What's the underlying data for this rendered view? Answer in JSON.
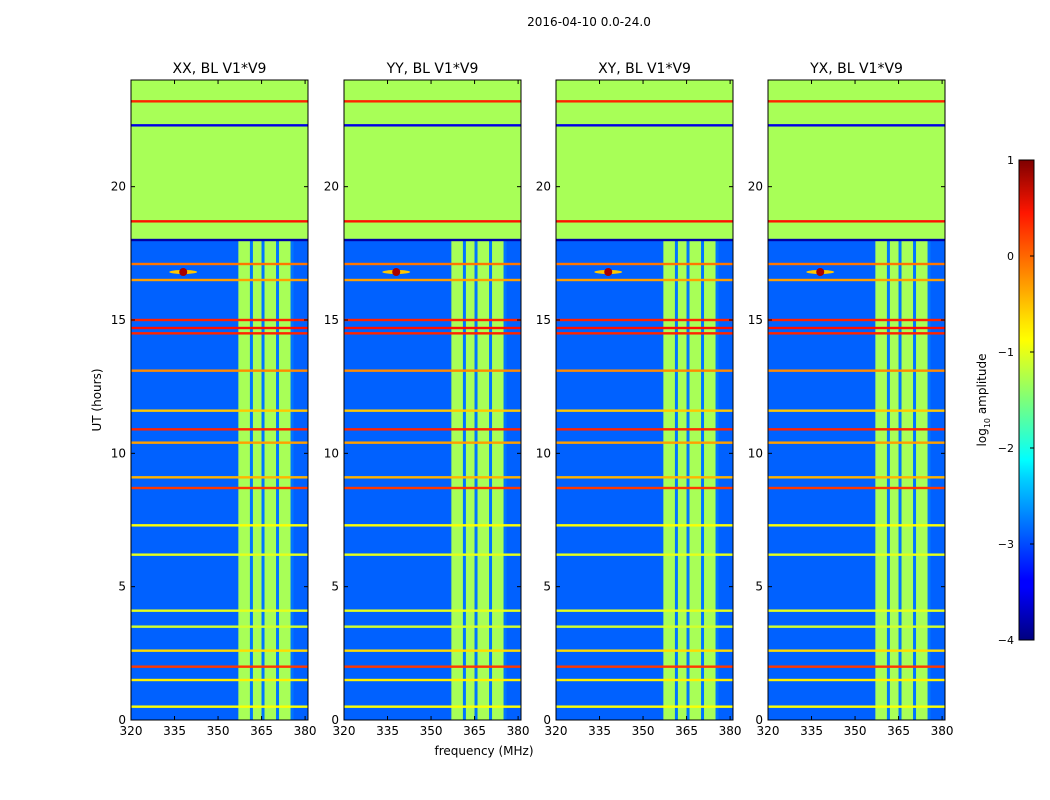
{
  "suptitle": "2016-04-10 0.0-24.0",
  "xlabel": "frequency (MHz)",
  "ylabel": "UT (hours)",
  "colorbar": {
    "label_prefix": "log",
    "label_sub": "10",
    "label_suffix": " amplitude",
    "range": [
      -4,
      1
    ],
    "ticks": [
      1,
      0,
      -1,
      -2,
      -3,
      -4
    ],
    "tick_labels": [
      "1",
      "0",
      "−1",
      "−2",
      "−3",
      "−4"
    ],
    "colormap": "jet"
  },
  "chart_data": {
    "type": "heatmap",
    "panels": [
      {
        "title": "XX, BL V1*V9"
      },
      {
        "title": "YY, BL V1*V9"
      },
      {
        "title": "XY, BL V1*V9"
      },
      {
        "title": "YX, BL V1*V9"
      }
    ],
    "xlim": [
      320,
      381
    ],
    "ylim": [
      0,
      24
    ],
    "xticks": [
      320,
      335,
      350,
      365,
      380
    ],
    "xtick_labels": [
      "320",
      "335",
      "350",
      "365",
      "380"
    ],
    "yticks": [
      0,
      5,
      10,
      15,
      20
    ],
    "ytick_labels": [
      "0",
      "5",
      "10",
      "15",
      "20"
    ],
    "regions": {
      "background_low_log10_amp": -2.9,
      "flagged_hours": [
        18,
        24
      ],
      "flagged_log10_amp": -1.3,
      "band_mhz": [
        357,
        376
      ],
      "band_log10_amp": -1.3,
      "band_dividers_mhz": [
        361.5,
        365.5,
        370.5,
        375.5
      ],
      "hot_spot": {
        "mhz": 338,
        "ut": 16.8,
        "log10_amp": 0.8
      }
    },
    "rfi_lines": [
      {
        "ut": 23.2,
        "log10_amp": 0.2
      },
      {
        "ut": 22.3,
        "log10_amp": -3.5
      },
      {
        "ut": 18.7,
        "log10_amp": 0.3
      },
      {
        "ut": 18.0,
        "log10_amp": -3.8
      },
      {
        "ut": 17.1,
        "log10_amp": -0.2
      },
      {
        "ut": 16.5,
        "log10_amp": -0.4
      },
      {
        "ut": 15.0,
        "log10_amp": 0.2
      },
      {
        "ut": 14.7,
        "log10_amp": 0.3
      },
      {
        "ut": 14.5,
        "log10_amp": 0.2
      },
      {
        "ut": 13.1,
        "log10_amp": -0.3
      },
      {
        "ut": 11.6,
        "log10_amp": -0.6
      },
      {
        "ut": 10.9,
        "log10_amp": 0.2
      },
      {
        "ut": 10.4,
        "log10_amp": -0.4
      },
      {
        "ut": 9.1,
        "log10_amp": -0.5
      },
      {
        "ut": 8.7,
        "log10_amp": 0.1
      },
      {
        "ut": 7.3,
        "log10_amp": -0.9
      },
      {
        "ut": 6.2,
        "log10_amp": -1.0
      },
      {
        "ut": 4.1,
        "log10_amp": -1.0
      },
      {
        "ut": 3.5,
        "log10_amp": -1.1
      },
      {
        "ut": 2.6,
        "log10_amp": -0.7
      },
      {
        "ut": 2.0,
        "log10_amp": 0.1
      },
      {
        "ut": 1.5,
        "log10_amp": -0.8
      },
      {
        "ut": 0.5,
        "log10_amp": -0.9
      }
    ]
  }
}
